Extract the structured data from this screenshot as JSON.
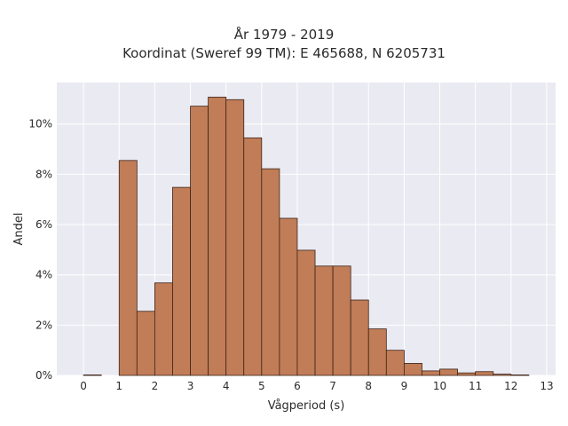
{
  "chart_data": {
    "type": "bar",
    "title_lines": [
      "År 1979 - 2019",
      "Koordinat (Sweref 99 TM): E 465688, N 6205731"
    ],
    "xlabel": "Vågperiod (s)",
    "ylabel": "Andel",
    "bin_width": 0.5,
    "bin_starts": [
      0,
      0.5,
      1,
      1.5,
      2,
      2.5,
      3,
      3.5,
      4,
      4.5,
      5,
      5.5,
      6,
      6.5,
      7,
      7.5,
      8,
      8.5,
      9,
      9.5,
      10,
      10.5,
      11,
      11.5,
      12,
      12.5
    ],
    "values": [
      0.0002,
      0,
      0.0855,
      0.0255,
      0.0368,
      0.0748,
      0.1071,
      0.1107,
      0.1097,
      0.0945,
      0.0822,
      0.0625,
      0.0498,
      0.0435,
      0.0435,
      0.03,
      0.0185,
      0.01,
      0.0048,
      0.0018,
      0.0025,
      0.001,
      0.0015,
      0.0005,
      0.0002,
      0
    ],
    "xlim": [
      -0.75,
      13.25
    ],
    "ylim": [
      0,
      0.1165
    ],
    "xticks": [
      0,
      1,
      2,
      3,
      4,
      5,
      6,
      7,
      8,
      9,
      10,
      11,
      12,
      13
    ],
    "xtick_labels": [
      "0",
      "1",
      "2",
      "3",
      "4",
      "5",
      "6",
      "7",
      "8",
      "9",
      "10",
      "11",
      "12",
      "13"
    ],
    "yticks": [
      0,
      0.02,
      0.04,
      0.06,
      0.08,
      0.1
    ],
    "ytick_labels": [
      "0%",
      "2%",
      "4%",
      "6%",
      "8%",
      "10%"
    ],
    "grid": true,
    "colors": {
      "bar_fill": "#c07d57",
      "bar_edge": "#3d2418",
      "plot_background": "#eaeaf2",
      "grid": "#ffffff"
    }
  }
}
